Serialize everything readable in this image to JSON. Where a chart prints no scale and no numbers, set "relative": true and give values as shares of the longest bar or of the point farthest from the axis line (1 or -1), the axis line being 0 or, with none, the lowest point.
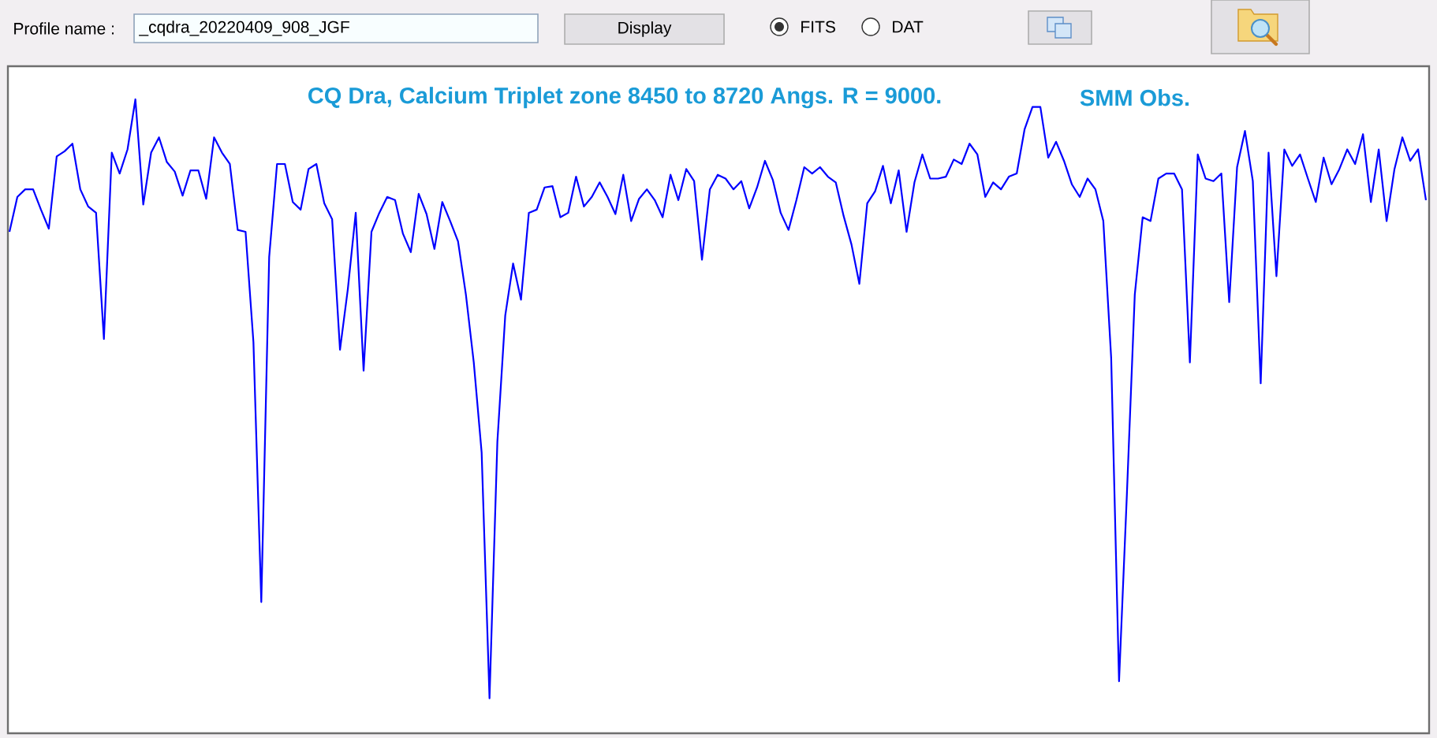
{
  "chart_data": [
    {
      "type": "other",
      "annotations": [
        "Profile name :",
        "_cqdra_20220409_908_JGF",
        "Display",
        "FITS",
        "DAT"
      ]
    },
    {
      "type": "line",
      "title": "CQ Dra, Calcium Triplet zone 8450 to 8720 Angs. R = 9000.",
      "annotations": [
        "SMM Obs."
      ],
      "relative": true,
      "color": "#0000ff",
      "categories": [
        null,
        null,
        null,
        null,
        null,
        null,
        null,
        null,
        null,
        null,
        null,
        null,
        null,
        null,
        null,
        null,
        null,
        null,
        null,
        null,
        null,
        null,
        null,
        null,
        null,
        null,
        null,
        null,
        null,
        null,
        null,
        null,
        null,
        null,
        null,
        null,
        null,
        null,
        null,
        null,
        null,
        null,
        null,
        null,
        null,
        null,
        null,
        null,
        null,
        null,
        null,
        null,
        null,
        null,
        null,
        null,
        null,
        null,
        null,
        null,
        null,
        null,
        null,
        null,
        null,
        null,
        null,
        null,
        null,
        null,
        null,
        null,
        null,
        null,
        null,
        null,
        null,
        null,
        null,
        null,
        null,
        null,
        null,
        null,
        null,
        null,
        null,
        null,
        null,
        null,
        null,
        null,
        null,
        null,
        null,
        null,
        null,
        null,
        null,
        null,
        null,
        null,
        null,
        null,
        null,
        null,
        null,
        null,
        null,
        null,
        null,
        null,
        null,
        null,
        null,
        null,
        null,
        null,
        null,
        null,
        null,
        null,
        null,
        null,
        null,
        null,
        null,
        null,
        null,
        null,
        null,
        null,
        null,
        null,
        null,
        null,
        null,
        null,
        null,
        null,
        null,
        null,
        null,
        null,
        null,
        null,
        null,
        null,
        null,
        null,
        null,
        null,
        null,
        null,
        null,
        null,
        null,
        null,
        null,
        null,
        null,
        null,
        null,
        null,
        null,
        null,
        null,
        null,
        null,
        null,
        null,
        null,
        null,
        null,
        null,
        null,
        null,
        null,
        null,
        null,
        null
      ],
      "values": [
        0.791,
        0.846,
        0.858,
        0.858,
        0.826,
        0.796,
        0.91,
        0.918,
        0.93,
        0.858,
        0.831,
        0.821,
        0.622,
        0.916,
        0.883,
        0.921,
        1.0,
        0.834,
        0.916,
        0.94,
        0.901,
        0.886,
        0.848,
        0.888,
        0.888,
        0.843,
        0.94,
        0.916,
        0.898,
        0.794,
        0.791,
        0.617,
        0.207,
        0.751,
        0.898,
        0.898,
        0.838,
        0.826,
        0.89,
        0.898,
        0.836,
        0.811,
        0.605,
        0.701,
        0.821,
        0.572,
        0.791,
        0.821,
        0.846,
        0.841,
        0.788,
        0.759,
        0.851,
        0.819,
        0.764,
        0.838,
        0.808,
        0.776,
        0.692,
        0.585,
        0.443,
        0.055,
        0.46,
        0.659,
        0.741,
        0.684,
        0.821,
        0.826,
        0.861,
        0.863,
        0.814,
        0.821,
        0.878,
        0.831,
        0.846,
        0.869,
        0.846,
        0.819,
        0.881,
        0.808,
        0.843,
        0.858,
        0.841,
        0.814,
        0.881,
        0.841,
        0.89,
        0.871,
        0.747,
        0.858,
        0.881,
        0.875,
        0.858,
        0.871,
        0.828,
        0.861,
        0.903,
        0.873,
        0.821,
        0.794,
        0.841,
        0.893,
        0.883,
        0.893,
        0.878,
        0.869,
        0.816,
        0.771,
        0.709,
        0.836,
        0.855,
        0.895,
        0.836,
        0.888,
        0.791,
        0.869,
        0.913,
        0.875,
        0.875,
        0.878,
        0.905,
        0.898,
        0.93,
        0.913,
        0.846,
        0.869,
        0.858,
        0.878,
        0.883,
        0.953,
        0.988,
        0.988,
        0.908,
        0.933,
        0.903,
        0.866,
        0.846,
        0.875,
        0.858,
        0.808,
        0.592,
        0.082,
        0.378,
        0.692,
        0.814,
        0.808,
        0.875,
        0.883,
        0.883,
        0.858,
        0.585,
        0.913,
        0.875,
        0.871,
        0.883,
        0.68,
        0.893,
        0.95,
        0.871,
        0.552,
        0.916,
        0.721,
        0.921,
        0.895,
        0.913,
        0.875,
        0.838,
        0.908,
        0.866,
        0.89,
        0.921,
        0.898,
        0.945,
        0.838,
        0.921,
        0.808,
        0.89,
        0.94,
        0.903,
        0.921,
        0.841
      ]
    }
  ]
}
